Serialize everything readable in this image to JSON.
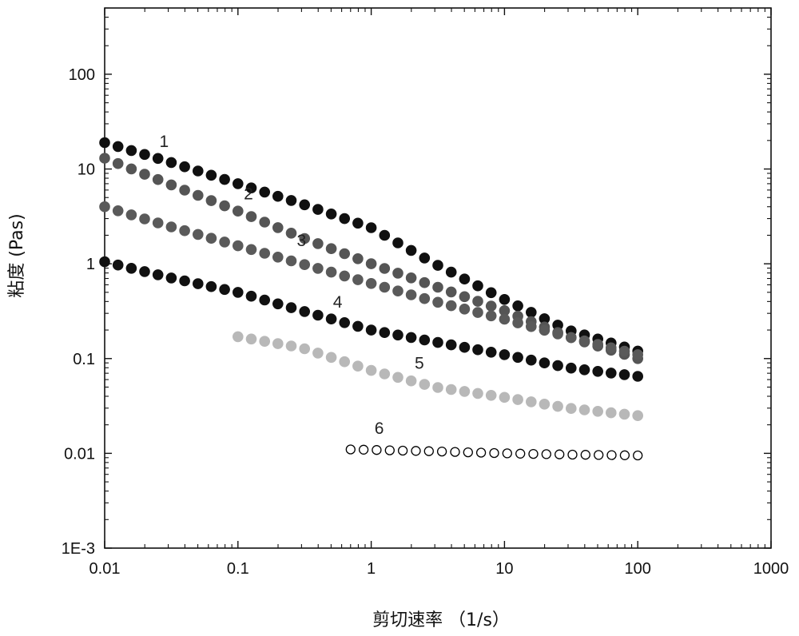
{
  "chart_data": {
    "type": "scatter",
    "xscale": "log",
    "yscale": "log",
    "xlim": [
      0.01,
      1000
    ],
    "ylim": [
      0.001,
      500
    ],
    "xticks": [
      0.01,
      0.1,
      1,
      10,
      100,
      1000
    ],
    "xtick_labels": [
      "0.01",
      "0.1",
      "1",
      "10",
      "100",
      "1000"
    ],
    "yticks": [
      0.001,
      0.01,
      0.1,
      1,
      10,
      100
    ],
    "ytick_labels": [
      "1E-3",
      "0.01",
      "0.1",
      "1",
      "10",
      "100"
    ],
    "xlabel": "剪切速率 （1/s）",
    "ylabel": "粘度 (Pas)",
    "grid": false,
    "legend": "none",
    "marker_colors": {
      "1": "#101010",
      "2": "#555555",
      "3": "#5a5a5a",
      "4": "#111111",
      "5": "#b8b8b8",
      "6": "#000000"
    },
    "series": [
      {
        "label": "1",
        "marker": "filled-circle",
        "x_range": [
          0.01,
          100
        ],
        "points": [
          [
            0.01,
            19
          ],
          [
            0.03,
            12
          ],
          [
            0.1,
            7
          ],
          [
            0.3,
            4.3
          ],
          [
            1,
            2.4
          ],
          [
            3,
            1.0
          ],
          [
            10,
            0.42
          ],
          [
            30,
            0.2
          ],
          [
            100,
            0.12
          ]
        ]
      },
      {
        "label": "2",
        "marker": "filled-circle",
        "x_range": [
          0.01,
          100
        ],
        "points": [
          [
            0.01,
            13
          ],
          [
            0.03,
            7
          ],
          [
            0.1,
            3.6
          ],
          [
            0.3,
            1.9
          ],
          [
            1,
            1.0
          ],
          [
            3,
            0.58
          ],
          [
            10,
            0.32
          ],
          [
            30,
            0.17
          ],
          [
            100,
            0.1
          ]
        ]
      },
      {
        "label": "3",
        "marker": "filled-circle",
        "x_range": [
          0.01,
          100
        ],
        "points": [
          [
            0.01,
            4.0
          ],
          [
            0.03,
            2.5
          ],
          [
            0.1,
            1.55
          ],
          [
            0.3,
            1.0
          ],
          [
            1,
            0.62
          ],
          [
            3,
            0.4
          ],
          [
            10,
            0.26
          ],
          [
            30,
            0.17
          ],
          [
            100,
            0.11
          ]
        ]
      },
      {
        "label": "4",
        "marker": "filled-circle",
        "x_range": [
          0.01,
          100
        ],
        "points": [
          [
            0.01,
            1.05
          ],
          [
            0.03,
            0.72
          ],
          [
            0.1,
            0.5
          ],
          [
            0.3,
            0.32
          ],
          [
            1,
            0.2
          ],
          [
            3,
            0.15
          ],
          [
            10,
            0.11
          ],
          [
            30,
            0.08
          ],
          [
            100,
            0.065
          ]
        ]
      },
      {
        "label": "5",
        "marker": "filled-circle",
        "x_range": [
          0.1,
          100
        ],
        "points": [
          [
            0.1,
            0.17
          ],
          [
            0.3,
            0.13
          ],
          [
            1,
            0.075
          ],
          [
            3,
            0.05
          ],
          [
            10,
            0.039
          ],
          [
            30,
            0.03
          ],
          [
            100,
            0.025
          ]
        ]
      },
      {
        "label": "6",
        "marker": "open-circle",
        "x_range": [
          0.7,
          100
        ],
        "points": [
          [
            0.7,
            0.011
          ],
          [
            3,
            0.0105
          ],
          [
            10,
            0.01
          ],
          [
            30,
            0.0097
          ],
          [
            100,
            0.0095
          ]
        ]
      }
    ]
  }
}
